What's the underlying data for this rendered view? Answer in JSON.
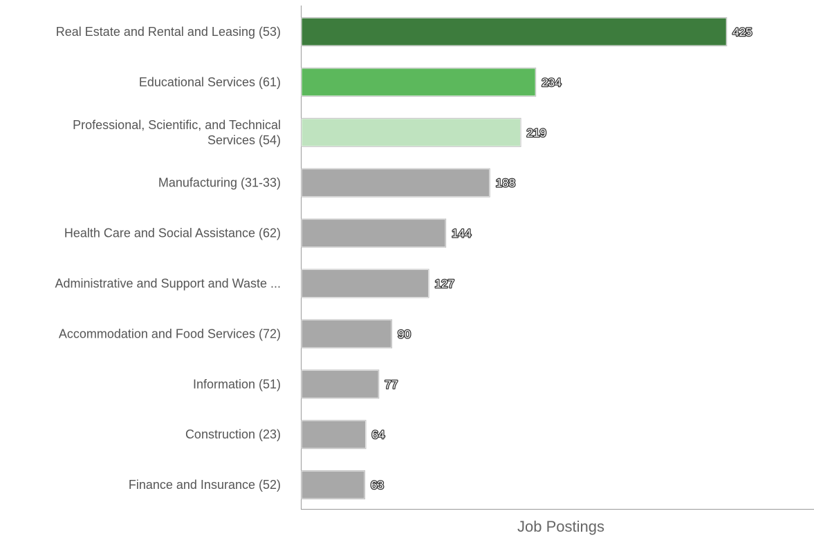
{
  "chart_data": {
    "type": "bar",
    "orientation": "horizontal",
    "title": "",
    "xlabel": "Job Postings",
    "ylabel": "",
    "categories": [
      "Real Estate and Rental and Leasing (53)",
      "Educational Services (61)",
      "Professional, Scientific, and Technical Services (54)",
      "Manufacturing (31-33)",
      "Health Care and Social Assistance (62)",
      "Administrative and Support and Waste ...",
      "Accommodation and Food Services (72)",
      "Information (51)",
      "Construction (23)",
      "Finance and Insurance (52)"
    ],
    "category_display_lines": [
      [
        "Real Estate and Rental and Leasing (53)"
      ],
      [
        "Educational Services (61)"
      ],
      [
        "Professional, Scientific, and Technical",
        "Services (54)"
      ],
      [
        "Manufacturing (31-33)"
      ],
      [
        "Health Care and Social Assistance (62)"
      ],
      [
        "Administrative and Support and Waste ..."
      ],
      [
        "Accommodation and Food Services (72)"
      ],
      [
        "Information (51)"
      ],
      [
        "Construction (23)"
      ],
      [
        "Finance and Insurance (52)"
      ]
    ],
    "values": [
      425,
      234,
      219,
      188,
      144,
      127,
      90,
      77,
      64,
      63
    ],
    "bar_colors": [
      "#3d7c3d",
      "#5cb85c",
      "#bfe3bf",
      "#a8a8a8",
      "#a8a8a8",
      "#a8a8a8",
      "#a8a8a8",
      "#a8a8a8",
      "#a8a8a8",
      "#a8a8a8"
    ],
    "xlim": [
      0,
      494
    ],
    "grid": false,
    "data_labels": true,
    "legend": "none"
  }
}
